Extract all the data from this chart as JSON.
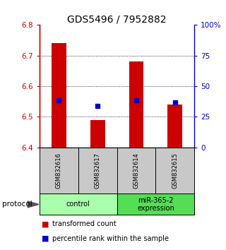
{
  "title": "GDS5496 / 7952882",
  "samples": [
    "GSM832616",
    "GSM832617",
    "GSM832614",
    "GSM832615"
  ],
  "bar_values": [
    6.74,
    6.49,
    6.68,
    6.54
  ],
  "percentile_values": [
    6.555,
    6.535,
    6.555,
    6.548
  ],
  "ylim": [
    6.4,
    6.8
  ],
  "yticks": [
    6.4,
    6.5,
    6.6,
    6.7,
    6.8
  ],
  "right_yticks": [
    0,
    25,
    50,
    75,
    100
  ],
  "right_ylabels": [
    "0",
    "25",
    "50",
    "75",
    "100%"
  ],
  "bar_color": "#cc0000",
  "percentile_color": "#0000cc",
  "bar_bottom": 6.4,
  "sample_box_color": "#c8c8c8",
  "group0_color": "#aaffaa",
  "group1_color": "#55dd55",
  "group0_label": "control",
  "group1_label": "miR-365-2\nexpression",
  "protocol_label": "protocol",
  "legend_bar_label": "transformed count",
  "legend_pct_label": "percentile rank within the sample",
  "title_fontsize": 10,
  "tick_fontsize": 7.5,
  "sample_fontsize": 6,
  "group_fontsize": 7,
  "legend_fontsize": 7
}
